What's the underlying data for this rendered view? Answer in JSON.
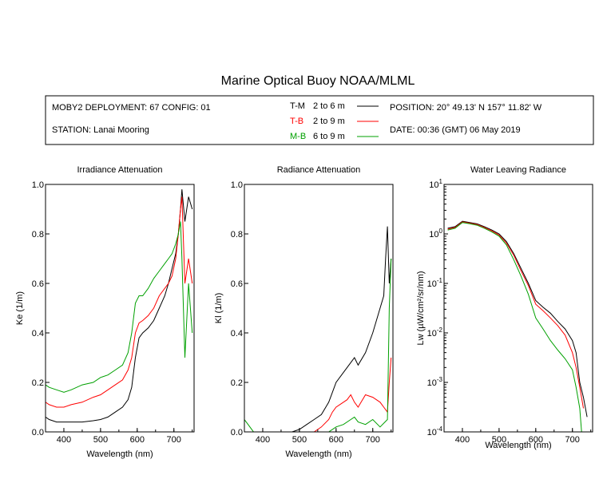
{
  "title": "Marine Optical Buoy NOAA/MLML",
  "info": {
    "deployment": "MOBY2 DEPLOYMENT: 67 CONFIG: 01",
    "station": "STATION: Lanai Mooring",
    "position": "POSITION: 20° 49.13' N   157° 11.82' W",
    "date": "DATE: 00:36 (GMT) 06 May 2019",
    "legend": [
      {
        "code": "T-M",
        "range": "2 to 6  m",
        "color": "#000000"
      },
      {
        "code": "T-B",
        "range": "2 to 9  m",
        "color": "#ff0000"
      },
      {
        "code": "M-B",
        "range": "6 to 9  m",
        "color": "#00a000"
      }
    ]
  },
  "chart_data": [
    {
      "type": "line",
      "title": "Irradiance Attenuation",
      "xlabel": "Wavelength (nm)",
      "ylabel": "Ke  (1/m)",
      "xlim": [
        350,
        755
      ],
      "ylim": [
        0,
        1.0
      ],
      "xticks": [
        "400",
        "500",
        "600",
        "700"
      ],
      "yticks": [
        "0.0",
        "0.2",
        "0.4",
        "0.6",
        "0.8",
        "1.0"
      ],
      "series": [
        {
          "name": "T-M",
          "color": "#000000",
          "x": [
            350,
            360,
            380,
            400,
            420,
            450,
            480,
            500,
            520,
            540,
            560,
            575,
            585,
            595,
            605,
            615,
            630,
            645,
            660,
            675,
            685,
            695,
            705,
            712,
            718,
            722,
            730,
            740,
            750
          ],
          "y": [
            0.06,
            0.05,
            0.04,
            0.04,
            0.04,
            0.04,
            0.045,
            0.05,
            0.06,
            0.08,
            0.1,
            0.13,
            0.18,
            0.3,
            0.38,
            0.4,
            0.42,
            0.45,
            0.5,
            0.55,
            0.6,
            0.66,
            0.72,
            0.8,
            0.9,
            0.98,
            0.85,
            0.95,
            0.9
          ]
        },
        {
          "name": "T-B",
          "color": "#ff0000",
          "x": [
            350,
            360,
            380,
            400,
            420,
            450,
            480,
            500,
            520,
            540,
            560,
            575,
            585,
            595,
            605,
            615,
            630,
            645,
            660,
            675,
            685,
            695,
            705,
            712,
            718,
            722,
            730,
            740,
            750
          ],
          "y": [
            0.12,
            0.11,
            0.1,
            0.1,
            0.11,
            0.12,
            0.14,
            0.15,
            0.17,
            0.19,
            0.21,
            0.25,
            0.3,
            0.4,
            0.44,
            0.45,
            0.47,
            0.5,
            0.55,
            0.58,
            0.6,
            0.63,
            0.7,
            0.8,
            0.9,
            0.95,
            0.6,
            0.7,
            0.6
          ]
        },
        {
          "name": "M-B",
          "color": "#00a000",
          "x": [
            350,
            360,
            380,
            400,
            420,
            450,
            480,
            500,
            520,
            540,
            560,
            575,
            585,
            595,
            605,
            615,
            630,
            645,
            660,
            675,
            685,
            695,
            705,
            712,
            718,
            722,
            730,
            740,
            750
          ],
          "y": [
            0.19,
            0.18,
            0.17,
            0.16,
            0.17,
            0.19,
            0.2,
            0.22,
            0.23,
            0.25,
            0.27,
            0.32,
            0.4,
            0.52,
            0.55,
            0.55,
            0.58,
            0.62,
            0.65,
            0.68,
            0.7,
            0.72,
            0.76,
            0.8,
            0.85,
            0.7,
            0.3,
            0.6,
            0.4
          ]
        }
      ]
    },
    {
      "type": "line",
      "title": "Radiance Attenuation",
      "xlabel": "Wavelength (nm)",
      "ylabel": "Kl  (1/m)",
      "xlim": [
        350,
        755
      ],
      "ylim": [
        0,
        1.0
      ],
      "xticks": [
        "400",
        "500",
        "600",
        "700"
      ],
      "yticks": [
        "0.0",
        "0.2",
        "0.4",
        "0.6",
        "0.8",
        "1.0"
      ],
      "series": [
        {
          "name": "T-M",
          "color": "#000000",
          "x": [
            480,
            500,
            520,
            540,
            560,
            580,
            590,
            600,
            620,
            640,
            650,
            660,
            680,
            700,
            710,
            720,
            730,
            735,
            740,
            745,
            750
          ],
          "y": [
            0.0,
            0.01,
            0.03,
            0.05,
            0.07,
            0.12,
            0.16,
            0.2,
            0.24,
            0.28,
            0.3,
            0.27,
            0.32,
            0.4,
            0.45,
            0.5,
            0.55,
            0.7,
            0.83,
            0.6,
            0.7
          ]
        },
        {
          "name": "T-B",
          "color": "#ff0000",
          "x": [
            540,
            560,
            580,
            590,
            600,
            620,
            630,
            640,
            650,
            660,
            680,
            700,
            720,
            730,
            740,
            745,
            750
          ],
          "y": [
            0.0,
            0.02,
            0.05,
            0.08,
            0.1,
            0.12,
            0.13,
            0.15,
            0.12,
            0.1,
            0.15,
            0.14,
            0.12,
            0.1,
            0.08,
            0.2,
            0.3
          ]
        },
        {
          "name": "M-B",
          "color": "#00a000",
          "x": [
            350,
            360,
            370,
            375,
            580,
            590,
            600,
            620,
            640,
            650,
            660,
            680,
            700,
            720,
            740,
            745,
            750
          ],
          "y": [
            0.05,
            0.03,
            0.01,
            0.0,
            0.0,
            0.01,
            0.02,
            0.03,
            0.05,
            0.06,
            0.04,
            0.03,
            0.05,
            0.02,
            0.05,
            0.5,
            0.7
          ]
        }
      ]
    },
    {
      "type": "line",
      "title": "Water Leaving Radiance",
      "xlabel": "Wavelength (nm)",
      "ylabel": "Lw  (µW/cm²/sr/nm)",
      "xlim": [
        350,
        755
      ],
      "ylim": [
        0.0001,
        10
      ],
      "yscale": "log",
      "xticks": [
        "400",
        "500",
        "600",
        "700"
      ],
      "yticks": [
        "10",
        "1",
        "-1",
        "-2",
        "-3",
        "-4"
      ],
      "series": [
        {
          "name": "T-M",
          "color": "#000000",
          "x": [
            360,
            380,
            400,
            420,
            440,
            460,
            480,
            500,
            520,
            540,
            560,
            580,
            600,
            620,
            640,
            660,
            680,
            700,
            710,
            720,
            730,
            740
          ],
          "y": [
            1.3,
            1.4,
            1.8,
            1.7,
            1.6,
            1.4,
            1.2,
            1.0,
            0.7,
            0.4,
            0.2,
            0.1,
            0.045,
            0.033,
            0.025,
            0.017,
            0.012,
            0.007,
            0.004,
            0.001,
            0.0005,
            0.0002
          ]
        },
        {
          "name": "T-B",
          "color": "#ff0000",
          "x": [
            360,
            380,
            400,
            420,
            440,
            460,
            480,
            500,
            520,
            540,
            560,
            580,
            600,
            620,
            640,
            660,
            680,
            700,
            710,
            720,
            730
          ],
          "y": [
            1.25,
            1.35,
            1.75,
            1.65,
            1.55,
            1.35,
            1.15,
            0.95,
            0.65,
            0.37,
            0.18,
            0.09,
            0.038,
            0.028,
            0.02,
            0.014,
            0.009,
            0.004,
            0.002,
            0.0008,
            0.0003
          ]
        },
        {
          "name": "M-B",
          "color": "#00a000",
          "x": [
            360,
            380,
            400,
            420,
            440,
            460,
            480,
            500,
            520,
            540,
            560,
            580,
            600,
            620,
            640,
            660,
            680,
            700,
            710,
            720,
            725
          ],
          "y": [
            1.2,
            1.3,
            1.7,
            1.6,
            1.5,
            1.3,
            1.1,
            0.9,
            0.6,
            0.3,
            0.14,
            0.06,
            0.02,
            0.012,
            0.007,
            0.0045,
            0.003,
            0.0018,
            0.0008,
            0.0003,
            0.0001
          ]
        }
      ]
    }
  ]
}
